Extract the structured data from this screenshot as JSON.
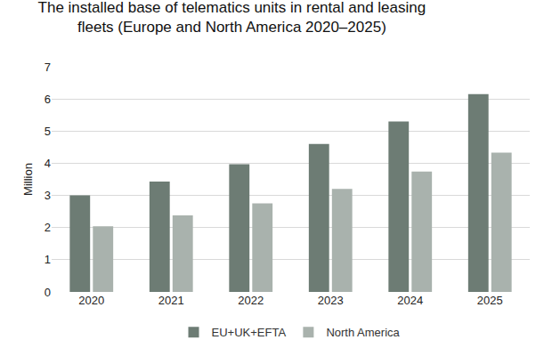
{
  "chart_data": {
    "type": "bar",
    "title": "The installed base of telematics units in rental and leasing fleets (Europe and North America 2020–2025)",
    "y_label": "Million",
    "categories": [
      "2020",
      "2021",
      "2022",
      "2023",
      "2024",
      "2025"
    ],
    "series": [
      {
        "name": "EU+UK+EFTA",
        "color": "#6d7c74",
        "values": [
          3.0,
          3.43,
          3.97,
          4.6,
          5.3,
          6.15
        ]
      },
      {
        "name": "North America",
        "color": "#a9b2ad",
        "values": [
          2.04,
          2.38,
          2.75,
          3.2,
          3.74,
          4.33
        ]
      }
    ],
    "ylim": [
      0,
      7
    ],
    "yticks": [
      0,
      1,
      2,
      3,
      4,
      5,
      6,
      7
    ],
    "grid": true,
    "legend": "bottom"
  }
}
